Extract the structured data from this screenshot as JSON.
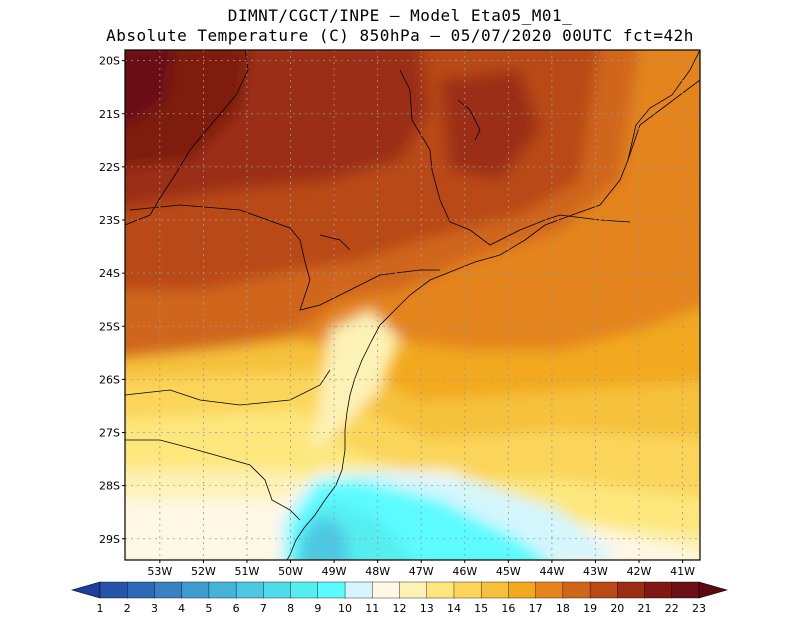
{
  "header": {
    "line1": "DIMNT/CGCT/INPE –  Model Eta05_M01_",
    "line2": "Absolute Temperature (C) 850hPa –  05/07/2020 00UTC fct=42h"
  },
  "map": {
    "lat_labels": [
      "20S",
      "21S",
      "22S",
      "23S",
      "24S",
      "25S",
      "26S",
      "27S",
      "28S",
      "29S"
    ],
    "lon_labels": [
      "53W",
      "52W",
      "51W",
      "50W",
      "49W",
      "48W",
      "47W",
      "46W",
      "45W",
      "44W",
      "43W",
      "42W",
      "41W"
    ],
    "lat_range": [
      -29.4,
      -19.8
    ],
    "lon_range": [
      -53.8,
      -40.6
    ]
  },
  "colorbar": {
    "labels": [
      "1",
      "2",
      "3",
      "4",
      "5",
      "6",
      "7",
      "8",
      "9",
      "10",
      "11",
      "12",
      "13",
      "14",
      "15",
      "16",
      "17",
      "18",
      "19",
      "20",
      "21",
      "22",
      "23"
    ],
    "colors": [
      "#1c3f9a",
      "#2754a8",
      "#2e69b5",
      "#3882c2",
      "#3d9bce",
      "#45b2d8",
      "#4dc8e2",
      "#4fdbe9",
      "#55eef0",
      "#5cfbff",
      "#d4f6fd",
      "#fff8e6",
      "#fdf2b6",
      "#fde77d",
      "#fbd55a",
      "#f6c13a",
      "#f2a91f",
      "#e4841a",
      "#d0661a",
      "#b94a17",
      "#9b2e12",
      "#7e1a10",
      "#6a0f14",
      "#5a0a10"
    ]
  }
}
